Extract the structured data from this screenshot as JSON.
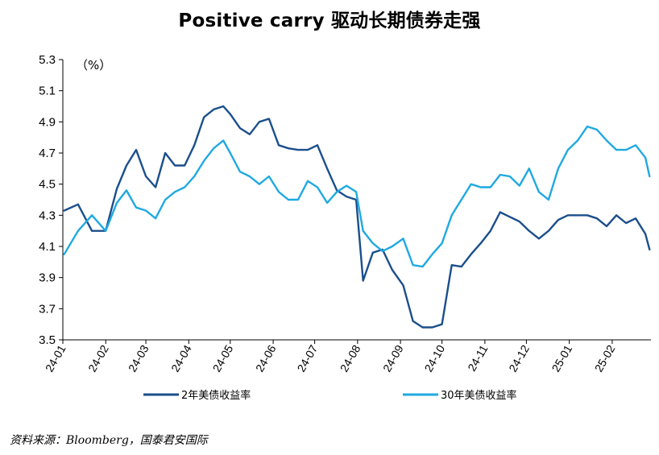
{
  "chart_data": {
    "type": "line",
    "title": "Positive carry 驱动长期债券走强",
    "unit_label": "（%）",
    "source_note": "资料来源：Bloomberg，国泰君安国际",
    "ylim": [
      3.5,
      5.3
    ],
    "yticks": [
      "3.5",
      "3.7",
      "3.9",
      "4.1",
      "4.3",
      "4.5",
      "4.7",
      "4.9",
      "5.1",
      "5.3"
    ],
    "xticks": [
      "24-01",
      "24-02",
      "24-03",
      "24-04",
      "24-05",
      "24-06",
      "24-07",
      "24-08",
      "24-09",
      "24-10",
      "24-11",
      "24-12",
      "25-01",
      "25-02"
    ],
    "grid": false,
    "legend_position": "bottom",
    "x": [
      "2024-01-02",
      "2024-01-12",
      "2024-01-22",
      "2024-02-01",
      "2024-02-09",
      "2024-02-16",
      "2024-02-23",
      "2024-03-01",
      "2024-03-08",
      "2024-03-15",
      "2024-03-22",
      "2024-03-29",
      "2024-04-05",
      "2024-04-12",
      "2024-04-19",
      "2024-04-26",
      "2024-05-01",
      "2024-05-08",
      "2024-05-15",
      "2024-05-22",
      "2024-05-29",
      "2024-06-05",
      "2024-06-12",
      "2024-06-19",
      "2024-06-26",
      "2024-07-03",
      "2024-07-10",
      "2024-07-17",
      "2024-07-24",
      "2024-07-31",
      "2024-08-05",
      "2024-08-12",
      "2024-08-19",
      "2024-08-26",
      "2024-09-03",
      "2024-09-10",
      "2024-09-17",
      "2024-09-24",
      "2024-10-01",
      "2024-10-08",
      "2024-10-15",
      "2024-10-22",
      "2024-10-29",
      "2024-11-05",
      "2024-11-12",
      "2024-11-19",
      "2024-11-26",
      "2024-12-03",
      "2024-12-10",
      "2024-12-17",
      "2024-12-24",
      "2024-12-31",
      "2025-01-07",
      "2025-01-14",
      "2025-01-21",
      "2025-01-28",
      "2025-02-04",
      "2025-02-11",
      "2025-02-18",
      "2025-02-25",
      "2025-02-28"
    ],
    "series": [
      {
        "name": "2年美债收益率",
        "color": "#1b4f8c",
        "values": [
          4.33,
          4.37,
          4.2,
          4.2,
          4.47,
          4.62,
          4.72,
          4.55,
          4.48,
          4.7,
          4.62,
          4.62,
          4.75,
          4.93,
          4.98,
          5.0,
          4.95,
          4.86,
          4.82,
          4.9,
          4.92,
          4.75,
          4.73,
          4.72,
          4.72,
          4.75,
          4.6,
          4.46,
          4.42,
          4.4,
          3.88,
          4.06,
          4.08,
          3.95,
          3.85,
          3.62,
          3.58,
          3.58,
          3.6,
          3.98,
          3.97,
          4.05,
          4.12,
          4.2,
          4.32,
          4.29,
          4.26,
          4.2,
          4.15,
          4.2,
          4.27,
          4.3,
          4.3,
          4.3,
          4.28,
          4.23,
          4.3,
          4.25,
          4.28,
          4.18,
          4.08
        ]
      },
      {
        "name": "30年美债收益率",
        "color": "#1fa9e1",
        "values": [
          4.05,
          4.2,
          4.3,
          4.2,
          4.38,
          4.46,
          4.35,
          4.33,
          4.28,
          4.4,
          4.45,
          4.48,
          4.55,
          4.65,
          4.73,
          4.78,
          4.7,
          4.58,
          4.55,
          4.5,
          4.55,
          4.45,
          4.4,
          4.4,
          4.52,
          4.48,
          4.38,
          4.45,
          4.49,
          4.45,
          4.2,
          4.12,
          4.07,
          4.1,
          4.15,
          3.98,
          3.97,
          4.05,
          4.12,
          4.3,
          4.4,
          4.5,
          4.48,
          4.48,
          4.56,
          4.55,
          4.49,
          4.6,
          4.45,
          4.4,
          4.6,
          4.72,
          4.78,
          4.87,
          4.85,
          4.78,
          4.72,
          4.72,
          4.75,
          4.67,
          4.55
        ]
      }
    ]
  }
}
